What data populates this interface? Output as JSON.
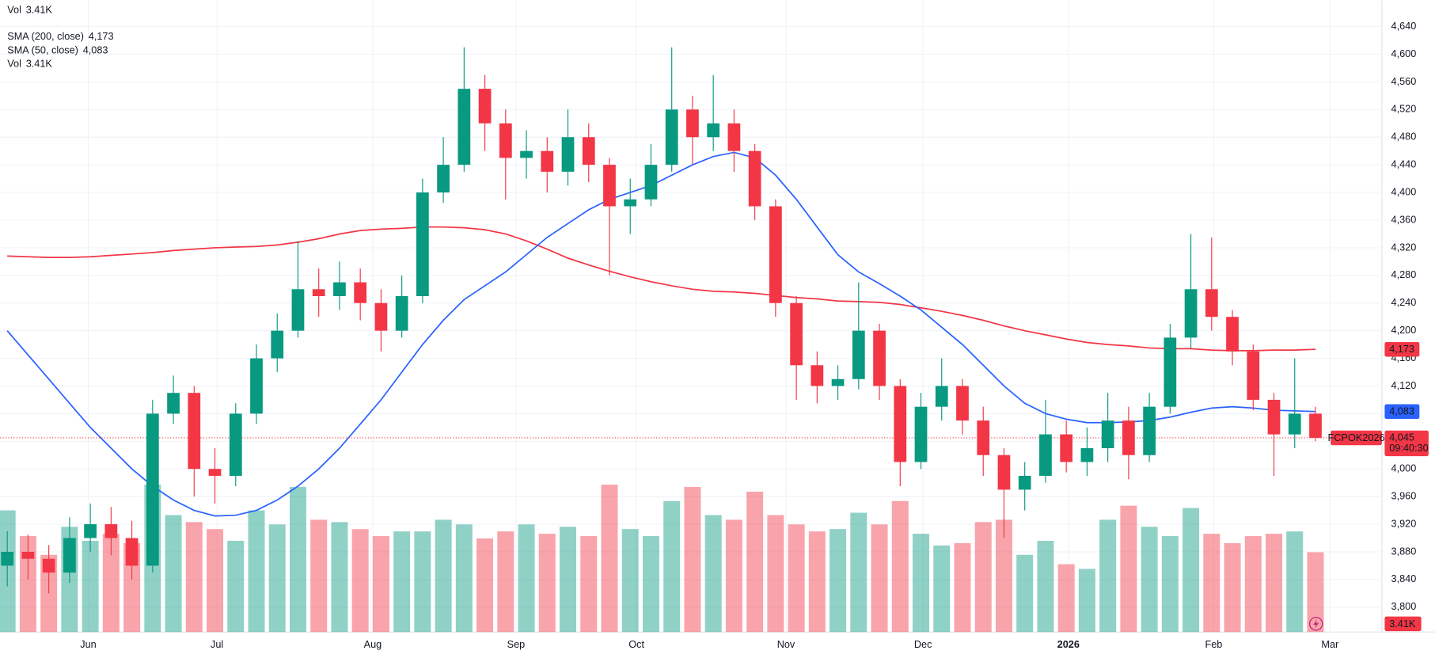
{
  "chart_data": {
    "type": "candlestick",
    "symbol": "FCPOK2026",
    "countdown": "09:40:30",
    "last_price_label": "4,045",
    "up_color": "#089981",
    "down_color": "#f23645",
    "grid": true,
    "ylim": [
      3764,
      4678
    ],
    "yticks": [
      {
        "value": 3800,
        "label": "3,800"
      },
      {
        "value": 3840,
        "label": "3,840"
      },
      {
        "value": 3880,
        "label": "3,880"
      },
      {
        "value": 3920,
        "label": "3,920"
      },
      {
        "value": 3960,
        "label": "3,960"
      },
      {
        "value": 4000,
        "label": "4,000"
      },
      {
        "value": 4040,
        "label": "4,040"
      },
      {
        "value": 4080,
        "label": "4,080"
      },
      {
        "value": 4120,
        "label": "4,120"
      },
      {
        "value": 4160,
        "label": "4,160"
      },
      {
        "value": 4200,
        "label": "4,200"
      },
      {
        "value": 4240,
        "label": "4,240"
      },
      {
        "value": 4280,
        "label": "4,280"
      },
      {
        "value": 4320,
        "label": "4,320"
      },
      {
        "value": 4360,
        "label": "4,360"
      },
      {
        "value": 4400,
        "label": "4,400"
      },
      {
        "value": 4440,
        "label": "4,440"
      },
      {
        "value": 4480,
        "label": "4,480"
      },
      {
        "value": 4520,
        "label": "4,520"
      },
      {
        "value": 4560,
        "label": "4,560"
      },
      {
        "value": 4600,
        "label": "4,600"
      },
      {
        "value": 4640,
        "label": "4,640"
      }
    ],
    "xlim": [
      -0.35,
      66.2
    ],
    "xticks": [
      {
        "value": 3.9,
        "label": "Jun"
      },
      {
        "value": 10.1,
        "label": "Jul"
      },
      {
        "value": 17.6,
        "label": "Aug"
      },
      {
        "value": 24.5,
        "label": "Sep"
      },
      {
        "value": 30.3,
        "label": "Oct"
      },
      {
        "value": 37.5,
        "label": "Nov"
      },
      {
        "value": 44.1,
        "label": "Dec"
      },
      {
        "value": 51.1,
        "label": "2026"
      },
      {
        "value": 58.1,
        "label": "Feb"
      },
      {
        "value": 63.7,
        "label": "Mar"
      }
    ],
    "open": [
      3860,
      3880,
      3870,
      3850,
      3900,
      3920,
      3900,
      3860,
      4080,
      4110,
      4000,
      3990,
      4080,
      4160,
      4200,
      4260,
      4250,
      4270,
      4240,
      4200,
      4250,
      4400,
      4440,
      4550,
      4500,
      4450,
      4460,
      4430,
      4480,
      4440,
      4380,
      4390,
      4440,
      4520,
      4480,
      4500,
      4460,
      4380,
      4240,
      4150,
      4120,
      4130,
      4200,
      4120,
      4010,
      4090,
      4120,
      4070,
      4020,
      3970,
      3990,
      4050,
      4010,
      4030,
      4070,
      4020,
      4090,
      4190,
      4260,
      4220,
      4170,
      4100,
      4050,
      4080
    ],
    "high": [
      3910,
      3905,
      3890,
      3930,
      3950,
      3945,
      3925,
      4100,
      4135,
      4120,
      4030,
      4095,
      4180,
      4225,
      4330,
      4290,
      4300,
      4290,
      4260,
      4280,
      4420,
      4480,
      4610,
      4570,
      4520,
      4490,
      4480,
      4520,
      4500,
      4450,
      4420,
      4470,
      4610,
      4540,
      4570,
      4520,
      4470,
      4390,
      4250,
      4170,
      4150,
      4270,
      4210,
      4130,
      4110,
      4160,
      4130,
      4090,
      4030,
      4010,
      4100,
      4070,
      4060,
      4110,
      4090,
      4110,
      4210,
      4340,
      4335,
      4230,
      4180,
      4110,
      4160,
      4090
    ],
    "low": [
      3830,
      3840,
      3820,
      3835,
      3880,
      3875,
      3840,
      3850,
      4065,
      3960,
      3950,
      3975,
      4065,
      4140,
      4190,
      4220,
      4230,
      4215,
      4170,
      4190,
      4240,
      4385,
      4430,
      4460,
      4390,
      4420,
      4400,
      4410,
      4415,
      4280,
      4340,
      4380,
      4430,
      4440,
      4460,
      4430,
      4360,
      4220,
      4100,
      4095,
      4100,
      4115,
      4100,
      3975,
      4000,
      4070,
      4050,
      3990,
      3900,
      3940,
      3980,
      3995,
      3990,
      4010,
      3985,
      4010,
      4080,
      4175,
      4200,
      4150,
      4085,
      3990,
      4030,
      4040
    ],
    "close": [
      3880,
      3870,
      3850,
      3900,
      3920,
      3900,
      3860,
      4080,
      4110,
      4000,
      3990,
      4080,
      4160,
      4200,
      4260,
      4250,
      4270,
      4240,
      4200,
      4250,
      4400,
      4440,
      4550,
      4500,
      4450,
      4460,
      4430,
      4480,
      4440,
      4380,
      4390,
      4440,
      4520,
      4480,
      4500,
      4460,
      4380,
      4240,
      4150,
      4120,
      4130,
      4200,
      4120,
      4010,
      4090,
      4120,
      4070,
      4020,
      3970,
      3990,
      4050,
      4010,
      4030,
      4070,
      4020,
      4090,
      4190,
      4260,
      4220,
      4170,
      4100,
      4050,
      4080,
      4045
    ],
    "series": [
      {
        "name": "SMA (200, close)",
        "color": "#f23645",
        "last_label": "4,173",
        "values": [
          4308,
          4307,
          4306,
          4306,
          4307,
          4309,
          4311,
          4313,
          4316,
          4318,
          4320,
          4321,
          4322,
          4324,
          4328,
          4333,
          4340,
          4345,
          4347,
          4348,
          4350,
          4350,
          4349,
          4346,
          4340,
          4330,
          4318,
          4305,
          4295,
          4286,
          4278,
          4271,
          4265,
          4260,
          4257,
          4256,
          4254,
          4251,
          4248,
          4246,
          4243,
          4242,
          4241,
          4238,
          4233,
          4228,
          4222,
          4215,
          4207,
          4200,
          4194,
          4188,
          4183,
          4180,
          4178,
          4175,
          4174,
          4174,
          4172,
          4171,
          4171,
          4172,
          4172,
          4173
        ]
      },
      {
        "name": "SMA (50, close)",
        "color": "#2962ff",
        "last_label": "4,083",
        "values": [
          4200,
          4165,
          4130,
          4095,
          4060,
          4030,
          4000,
          3975,
          3955,
          3940,
          3932,
          3933,
          3940,
          3955,
          3975,
          4000,
          4030,
          4065,
          4100,
          4140,
          4180,
          4215,
          4245,
          4265,
          4285,
          4310,
          4335,
          4355,
          4375,
          4390,
          4400,
          4410,
          4425,
          4440,
          4452,
          4458,
          4450,
          4425,
          4390,
          4350,
          4310,
          4285,
          4268,
          4250,
          4230,
          4205,
          4180,
          4150,
          4120,
          4095,
          4080,
          4072,
          4067,
          4067,
          4068,
          4070,
          4075,
          4082,
          4088,
          4090,
          4088,
          4085,
          4084,
          4083
        ]
      }
    ],
    "volume": {
      "name": "Vol",
      "label": "3.41K",
      "ylim": [
        0,
        27000
      ],
      "values": [
        5200,
        4100,
        3300,
        4500,
        3900,
        4200,
        3800,
        6300,
        5000,
        4700,
        4400,
        3900,
        5200,
        4600,
        6200,
        4800,
        4700,
        4400,
        4100,
        4300,
        4300,
        4800,
        4600,
        4000,
        4300,
        4600,
        4200,
        4500,
        4100,
        6300,
        4400,
        4100,
        5600,
        6200,
        5000,
        4800,
        6000,
        5000,
        4600,
        4300,
        4400,
        5100,
        4600,
        5600,
        4200,
        3700,
        3800,
        4700,
        4800,
        3300,
        3900,
        2900,
        2700,
        4800,
        5400,
        4500,
        4100,
        5300,
        4200,
        3800,
        4100,
        4200,
        4300,
        3410
      ]
    }
  }
}
